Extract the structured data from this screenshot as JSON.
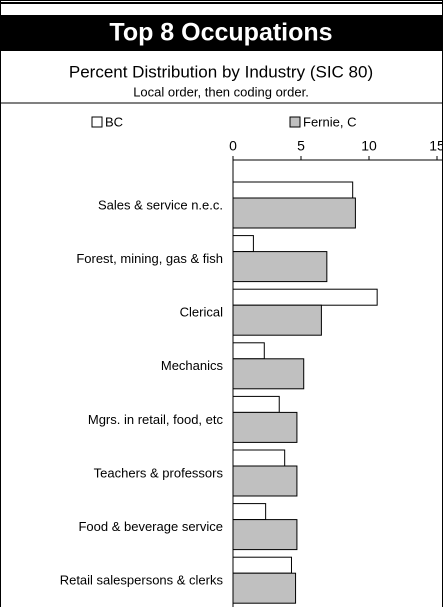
{
  "chart_data": {
    "type": "hbar",
    "title": "Top 8 Occupations",
    "subtitle": "Percent Distribution by Industry (SIC 80)",
    "note": "Local order, then coding order.",
    "categories": [
      "Sales & service  n.e.c.",
      "Forest, mining, gas & fish",
      "Clerical",
      "Mechanics",
      "Mgrs. in retail, food, etc",
      "Teachers & professors",
      "Food & beverage service",
      "Retail salespersons & clerks"
    ],
    "series": [
      {
        "name": "BC",
        "color": "#ffffff",
        "values": [
          8.8,
          1.5,
          10.6,
          2.3,
          3.4,
          3.8,
          2.4,
          4.3
        ]
      },
      {
        "name": "Fernie, C",
        "color": "#c0c0c0",
        "values": [
          9.0,
          6.9,
          6.5,
          5.2,
          4.7,
          4.7,
          4.7,
          4.6
        ]
      }
    ],
    "xlim": [
      0,
      15
    ],
    "xticks": [
      0,
      5,
      10,
      15
    ],
    "legend": "top"
  }
}
